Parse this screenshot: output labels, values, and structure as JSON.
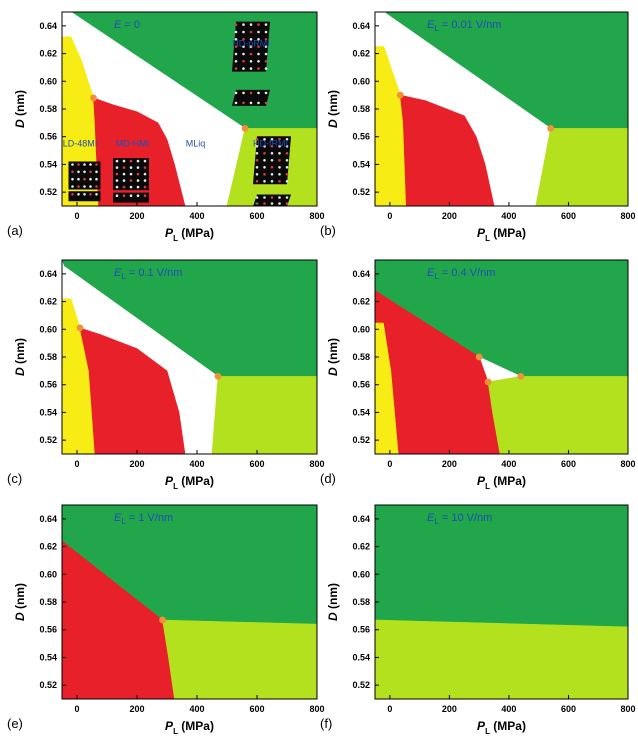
{
  "colors": {
    "green": "#21a64b",
    "yellow": "#f7ec13",
    "red": "#e8202a",
    "lime": "#b4e11e",
    "white": "#ffffff",
    "point": "#f0913a",
    "label_blue": "#1f4fb6",
    "axis": "#000000"
  },
  "chart_data": [
    {
      "panel": "(a)",
      "type": "area",
      "title_var": "E",
      "title_sub": "",
      "title_value": " = 0",
      "xlabel_var": "P",
      "xlabel_sub": "L",
      "xlabel_unit": " (MPa)",
      "ylabel": "D (nm)",
      "xticks": [
        "0",
        "200",
        "400",
        "600",
        "800"
      ],
      "yticks": [
        "0.52",
        "0.54",
        "0.56",
        "0.58",
        "0.60",
        "0.62",
        "0.64"
      ],
      "xlim": [
        -50,
        800
      ],
      "ylim": [
        0.51,
        0.65
      ],
      "phase_labels": [
        {
          "text": "HD-pRMI",
          "x": 580,
          "y": 0.625
        },
        {
          "text": "LD-48MI",
          "x": 10,
          "y": 0.553
        },
        {
          "text": "MD-HMI",
          "x": 185,
          "y": 0.553
        },
        {
          "text": "MLiq",
          "x": 395,
          "y": 0.553
        },
        {
          "text": "HD-fRMI",
          "x": 645,
          "y": 0.553
        }
      ],
      "has_insets": true,
      "regions": [
        {
          "name": "green",
          "points": [
            [
              -50,
              0.65
            ],
            [
              800,
              0.65
            ],
            [
              800,
              0.566
            ],
            [
              560,
              0.566
            ],
            [
              -20,
              0.65
            ]
          ]
        },
        {
          "name": "white",
          "points": [
            [
              -20,
              0.65
            ],
            [
              560,
              0.566
            ],
            [
              500,
              0.51
            ],
            [
              360,
              0.51
            ],
            [
              325,
              0.54
            ],
            [
              300,
              0.558
            ],
            [
              270,
              0.57
            ],
            [
              200,
              0.578
            ],
            [
              120,
              0.583
            ],
            [
              55,
              0.588
            ],
            [
              -20,
              0.632
            ],
            [
              -50,
              0.632
            ],
            [
              -50,
              0.65
            ]
          ]
        },
        {
          "name": "yellow",
          "points": [
            [
              -50,
              0.51
            ],
            [
              -50,
              0.632
            ],
            [
              -20,
              0.632
            ],
            [
              15,
              0.615
            ],
            [
              55,
              0.588
            ],
            [
              60,
              0.57
            ],
            [
              72,
              0.51
            ]
          ]
        },
        {
          "name": "red",
          "points": [
            [
              72,
              0.51
            ],
            [
              60,
              0.57
            ],
            [
              55,
              0.588
            ],
            [
              120,
              0.583
            ],
            [
              200,
              0.578
            ],
            [
              270,
              0.57
            ],
            [
              300,
              0.558
            ],
            [
              325,
              0.54
            ],
            [
              360,
              0.51
            ]
          ]
        },
        {
          "name": "lime",
          "points": [
            [
              500,
              0.51
            ],
            [
              560,
              0.566
            ],
            [
              800,
              0.566
            ],
            [
              800,
              0.51
            ]
          ]
        }
      ],
      "triple_points": [
        [
          55,
          0.588
        ],
        [
          560,
          0.566
        ]
      ]
    },
    {
      "panel": "(b)",
      "type": "area",
      "title_var": "E",
      "title_sub": "L",
      "title_value": " = 0.01 V/nm",
      "xlabel_var": "P",
      "xlabel_sub": "L",
      "xlabel_unit": " (MPa)",
      "ylabel": "D (nm)",
      "xticks": [
        "0",
        "200",
        "400",
        "600",
        "800"
      ],
      "yticks": [
        "0.52",
        "0.54",
        "0.56",
        "0.58",
        "0.60",
        "0.62",
        "0.64"
      ],
      "xlim": [
        -50,
        800
      ],
      "ylim": [
        0.51,
        0.65
      ],
      "regions": [
        {
          "name": "green",
          "points": [
            [
              -50,
              0.65
            ],
            [
              800,
              0.65
            ],
            [
              800,
              0.566
            ],
            [
              540,
              0.566
            ],
            [
              -20,
              0.65
            ]
          ]
        },
        {
          "name": "white",
          "points": [
            [
              -20,
              0.65
            ],
            [
              540,
              0.566
            ],
            [
              490,
              0.51
            ],
            [
              350,
              0.51
            ],
            [
              320,
              0.54
            ],
            [
              290,
              0.56
            ],
            [
              250,
              0.575
            ],
            [
              120,
              0.586
            ],
            [
              35,
              0.59
            ],
            [
              -20,
              0.625
            ],
            [
              -50,
              0.625
            ],
            [
              -50,
              0.65
            ]
          ]
        },
        {
          "name": "yellow",
          "points": [
            [
              -50,
              0.51
            ],
            [
              -50,
              0.625
            ],
            [
              -20,
              0.625
            ],
            [
              35,
              0.59
            ],
            [
              45,
              0.57
            ],
            [
              55,
              0.51
            ]
          ]
        },
        {
          "name": "red",
          "points": [
            [
              55,
              0.51
            ],
            [
              45,
              0.57
            ],
            [
              35,
              0.59
            ],
            [
              120,
              0.586
            ],
            [
              250,
              0.575
            ],
            [
              290,
              0.56
            ],
            [
              320,
              0.54
            ],
            [
              350,
              0.51
            ]
          ]
        },
        {
          "name": "lime",
          "points": [
            [
              490,
              0.51
            ],
            [
              540,
              0.566
            ],
            [
              800,
              0.566
            ],
            [
              800,
              0.51
            ]
          ]
        }
      ],
      "triple_points": [
        [
          35,
          0.59
        ],
        [
          540,
          0.566
        ]
      ]
    },
    {
      "panel": "(c)",
      "type": "area",
      "title_var": "E",
      "title_sub": "L",
      "title_value": " = 0.1 V/nm",
      "xlabel_var": "P",
      "xlabel_sub": "L",
      "xlabel_unit": " (MPa)",
      "ylabel": "D (nm)",
      "xticks": [
        "0",
        "200",
        "400",
        "600",
        "800"
      ],
      "yticks": [
        "0.52",
        "0.54",
        "0.56",
        "0.58",
        "0.60",
        "0.62",
        "0.64"
      ],
      "xlim": [
        -50,
        800
      ],
      "ylim": [
        0.51,
        0.65
      ],
      "regions": [
        {
          "name": "green",
          "points": [
            [
              -50,
              0.65
            ],
            [
              800,
              0.65
            ],
            [
              800,
              0.566
            ],
            [
              470,
              0.566
            ],
            [
              -40,
              0.645
            ]
          ]
        },
        {
          "name": "white",
          "points": [
            [
              -40,
              0.645
            ],
            [
              470,
              0.566
            ],
            [
              450,
              0.51
            ],
            [
              360,
              0.51
            ],
            [
              340,
              0.54
            ],
            [
              300,
              0.57
            ],
            [
              200,
              0.586
            ],
            [
              80,
              0.596
            ],
            [
              10,
              0.601
            ],
            [
              -20,
              0.622
            ],
            [
              -50,
              0.622
            ],
            [
              -50,
              0.645
            ]
          ]
        },
        {
          "name": "yellow",
          "points": [
            [
              -50,
              0.51
            ],
            [
              -50,
              0.622
            ],
            [
              -20,
              0.622
            ],
            [
              10,
              0.601
            ],
            [
              40,
              0.57
            ],
            [
              60,
              0.51
            ]
          ]
        },
        {
          "name": "red",
          "points": [
            [
              60,
              0.51
            ],
            [
              40,
              0.57
            ],
            [
              10,
              0.601
            ],
            [
              80,
              0.596
            ],
            [
              200,
              0.586
            ],
            [
              300,
              0.57
            ],
            [
              340,
              0.54
            ],
            [
              360,
              0.51
            ]
          ]
        },
        {
          "name": "lime",
          "points": [
            [
              450,
              0.51
            ],
            [
              470,
              0.566
            ],
            [
              800,
              0.566
            ],
            [
              800,
              0.51
            ]
          ]
        }
      ],
      "triple_points": [
        [
          10,
          0.601
        ],
        [
          470,
          0.566
        ]
      ]
    },
    {
      "panel": "(d)",
      "type": "area",
      "title_var": "E",
      "title_sub": "L",
      "title_value": " = 0.4 V/nm",
      "xlabel_var": "P",
      "xlabel_sub": "L",
      "xlabel_unit": " (MPa)",
      "ylabel": "D (nm)",
      "xticks": [
        "0",
        "200",
        "400",
        "600",
        "800"
      ],
      "yticks": [
        "0.52",
        "0.54",
        "0.56",
        "0.58",
        "0.60",
        "0.62",
        "0.64"
      ],
      "xlim": [
        -50,
        800
      ],
      "ylim": [
        0.51,
        0.65
      ],
      "regions": [
        {
          "name": "green",
          "points": [
            [
              -50,
              0.65
            ],
            [
              800,
              0.65
            ],
            [
              800,
              0.566
            ],
            [
              440,
              0.566
            ],
            [
              300,
              0.58
            ],
            [
              -50,
              0.628
            ]
          ]
        },
        {
          "name": "white",
          "points": [
            [
              300,
              0.58
            ],
            [
              440,
              0.566
            ],
            [
              330,
              0.562
            ]
          ]
        },
        {
          "name": "yellow",
          "points": [
            [
              -50,
              0.51
            ],
            [
              -50,
              0.605
            ],
            [
              -20,
              0.605
            ],
            [
              5,
              0.57
            ],
            [
              30,
              0.51
            ]
          ]
        },
        {
          "name": "red",
          "points": [
            [
              -50,
              0.605
            ],
            [
              -50,
              0.628
            ],
            [
              300,
              0.58
            ],
            [
              330,
              0.562
            ],
            [
              345,
              0.54
            ],
            [
              370,
              0.51
            ],
            [
              30,
              0.51
            ],
            [
              5,
              0.57
            ],
            [
              -20,
              0.605
            ]
          ]
        },
        {
          "name": "lime",
          "points": [
            [
              370,
              0.51
            ],
            [
              345,
              0.54
            ],
            [
              330,
              0.562
            ],
            [
              440,
              0.566
            ],
            [
              800,
              0.566
            ],
            [
              800,
              0.51
            ]
          ]
        }
      ],
      "triple_points": [
        [
          300,
          0.58
        ],
        [
          330,
          0.562
        ],
        [
          440,
          0.566
        ]
      ]
    },
    {
      "panel": "(e)",
      "type": "area",
      "title_var": "E",
      "title_sub": "L",
      "title_value": " = 1 V/nm",
      "xlabel_var": "P",
      "xlabel_sub": "L",
      "xlabel_unit": " (MPa)",
      "ylabel": "D (nm)",
      "xticks": [
        "0",
        "200",
        "400",
        "600",
        "800"
      ],
      "yticks": [
        "0.52",
        "0.54",
        "0.56",
        "0.58",
        "0.60",
        "0.62",
        "0.64"
      ],
      "xlim": [
        -50,
        800
      ],
      "ylim": [
        0.51,
        0.65
      ],
      "regions": [
        {
          "name": "green",
          "points": [
            [
              -50,
              0.65
            ],
            [
              800,
              0.65
            ],
            [
              800,
              0.564
            ],
            [
              285,
              0.567
            ],
            [
              -50,
              0.624
            ]
          ]
        },
        {
          "name": "red",
          "points": [
            [
              -50,
              0.51
            ],
            [
              -50,
              0.624
            ],
            [
              285,
              0.567
            ],
            [
              305,
              0.54
            ],
            [
              325,
              0.51
            ]
          ]
        },
        {
          "name": "lime",
          "points": [
            [
              325,
              0.51
            ],
            [
              305,
              0.54
            ],
            [
              285,
              0.567
            ],
            [
              800,
              0.564
            ],
            [
              800,
              0.51
            ]
          ]
        }
      ],
      "triple_points": [
        [
          285,
          0.567
        ]
      ]
    },
    {
      "panel": "(f)",
      "type": "area",
      "title_var": "E",
      "title_sub": "L",
      "title_value": " = 10 V/nm",
      "xlabel_var": "P",
      "xlabel_sub": "L",
      "xlabel_unit": " (MPa)",
      "ylabel": "D (nm)",
      "xticks": [
        "0",
        "200",
        "400",
        "600",
        "800"
      ],
      "yticks": [
        "0.52",
        "0.54",
        "0.56",
        "0.58",
        "0.60",
        "0.62",
        "0.64"
      ],
      "xlim": [
        -50,
        800
      ],
      "ylim": [
        0.51,
        0.65
      ],
      "regions": [
        {
          "name": "green",
          "points": [
            [
              -50,
              0.65
            ],
            [
              800,
              0.65
            ],
            [
              800,
              0.562
            ],
            [
              -50,
              0.567
            ]
          ]
        },
        {
          "name": "lime",
          "points": [
            [
              -50,
              0.51
            ],
            [
              -50,
              0.567
            ],
            [
              800,
              0.562
            ],
            [
              800,
              0.51
            ]
          ]
        }
      ],
      "triple_points": []
    }
  ]
}
